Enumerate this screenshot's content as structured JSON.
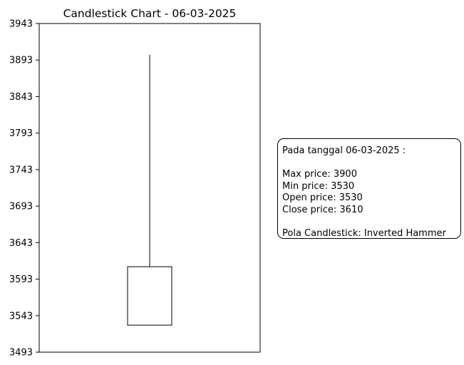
{
  "chart_data": {
    "type": "candlestick",
    "title": "Candlestick Chart - 06-03-2025",
    "xlabel": "",
    "ylabel": "",
    "ylim": [
      3493,
      3943
    ],
    "yticks": [
      3493,
      3543,
      3593,
      3643,
      3693,
      3743,
      3793,
      3843,
      3893,
      3943
    ],
    "grid": false,
    "candles": [
      {
        "date": "06-03-2025",
        "open": 3530,
        "high": 3900,
        "low": 3530,
        "close": 3610
      }
    ],
    "colors": {
      "body_fill": "#ffffff",
      "stroke": "#000000"
    }
  },
  "info": {
    "heading": "Pada tanggal 06-03-2025 :",
    "max": "Max price: 3900",
    "min": "Min price: 3530",
    "open": "Open price: 3530",
    "close": "Close price: 3610",
    "pattern": "Pola Candlestick: Inverted Hammer"
  }
}
